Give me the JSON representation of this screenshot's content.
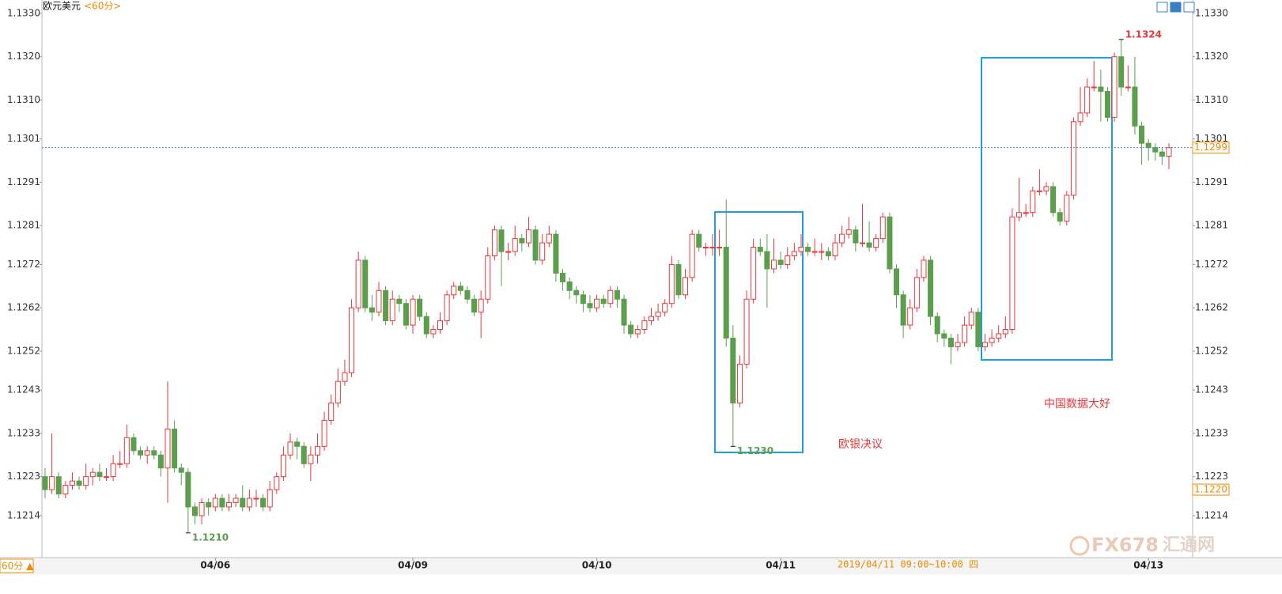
{
  "chart_data": {
    "type": "candlestick",
    "title": "欧元美元",
    "period": "<60分>",
    "period_button": "60分 ▲",
    "time_readout": "2019/04/11 09:00~10:00 四",
    "watermark": [
      "FX678",
      "汇通网"
    ],
    "annotations": [
      "欧银决议",
      "中国数据大好"
    ],
    "up_color": "#e8373b",
    "down_color": "#5b9e4d",
    "ylim": [
      1.12043,
      1.13331
    ],
    "yticks": [
      {
        "value": 1.133,
        "label": "1.1330"
      },
      {
        "value": 1.132,
        "label": "1.1320"
      },
      {
        "value": 1.131,
        "label": "1.1310"
      },
      {
        "value": 1.1301,
        "label": "1.1301"
      },
      {
        "value": 1.1291,
        "label": "1.1291"
      },
      {
        "value": 1.1281,
        "label": "1.1281"
      },
      {
        "value": 1.1272,
        "label": "1.1272"
      },
      {
        "value": 1.1262,
        "label": "1.1262"
      },
      {
        "value": 1.1252,
        "label": "1.1252"
      },
      {
        "value": 1.1243,
        "label": "1.1243"
      },
      {
        "value": 1.1233,
        "label": "1.1233"
      },
      {
        "value": 1.1223,
        "label": "1.1223"
      },
      {
        "value": 1.1214,
        "label": "1.1214"
      }
    ],
    "xticks": [
      {
        "value": 25,
        "label": "04/06"
      },
      {
        "value": 54,
        "label": "04/09"
      },
      {
        "value": 81,
        "label": "04/10"
      },
      {
        "value": 108,
        "label": "04/11"
      },
      {
        "value": 162,
        "label": "04/13"
      }
    ],
    "extremes": [
      {
        "kind": "low",
        "value": 1.121,
        "label": "1.1210"
      },
      {
        "kind": "low",
        "value": 1.123,
        "label": "1.1230"
      },
      {
        "kind": "high",
        "value": 1.1324,
        "label": "1.1324"
      }
    ],
    "last_price": {
      "value": 1.1299,
      "label": "1.1299"
    },
    "price_tag": {
      "value": 1.122,
      "label": "1.1220"
    },
    "ohlc": [
      [
        1.1223,
        1.1225,
        1.1218,
        1.122
      ],
      [
        1.122,
        1.1233,
        1.1219,
        1.1223
      ],
      [
        1.1223,
        1.1224,
        1.1218,
        1.1219
      ],
      [
        1.1219,
        1.1222,
        1.1218,
        1.1221
      ],
      [
        1.1221,
        1.1224,
        1.122,
        1.1222
      ],
      [
        1.1222,
        1.1223,
        1.122,
        1.1221
      ],
      [
        1.1221,
        1.1226,
        1.122,
        1.1223
      ],
      [
        1.1223,
        1.1225,
        1.1221,
        1.1224
      ],
      [
        1.1224,
        1.1226,
        1.1222,
        1.1223
      ],
      [
        1.1223,
        1.1225,
        1.1222,
        1.1223
      ],
      [
        1.1223,
        1.1228,
        1.1222,
        1.1226
      ],
      [
        1.1226,
        1.1229,
        1.1225,
        1.1226
      ],
      [
        1.1226,
        1.1235,
        1.1225,
        1.1232
      ],
      [
        1.1232,
        1.1233,
        1.1228,
        1.1229
      ],
      [
        1.1229,
        1.123,
        1.1227,
        1.1228
      ],
      [
        1.1228,
        1.123,
        1.1226,
        1.1229
      ],
      [
        1.1229,
        1.123,
        1.1227,
        1.1228
      ],
      [
        1.1228,
        1.1229,
        1.1223,
        1.1225
      ],
      [
        1.1225,
        1.1245,
        1.1217,
        1.1234
      ],
      [
        1.1234,
        1.1236,
        1.1224,
        1.1225
      ],
      [
        1.1225,
        1.1226,
        1.1221,
        1.1224
      ],
      [
        1.1224,
        1.1225,
        1.121,
        1.1216
      ],
      [
        1.1216,
        1.1217,
        1.1212,
        1.1214
      ],
      [
        1.1214,
        1.1218,
        1.1212,
        1.1217
      ],
      [
        1.1217,
        1.1218,
        1.1214,
        1.1216
      ],
      [
        1.1216,
        1.1219,
        1.1215,
        1.1218
      ],
      [
        1.1218,
        1.1219,
        1.1215,
        1.1216
      ],
      [
        1.1216,
        1.1219,
        1.1215,
        1.1217
      ],
      [
        1.1217,
        1.1219,
        1.1216,
        1.1218
      ],
      [
        1.1218,
        1.1221,
        1.1215,
        1.1216
      ],
      [
        1.1216,
        1.122,
        1.1215,
        1.1218
      ],
      [
        1.1218,
        1.122,
        1.1216,
        1.1218
      ],
      [
        1.1218,
        1.1219,
        1.1215,
        1.1216
      ],
      [
        1.1216,
        1.1222,
        1.1215,
        1.122
      ],
      [
        1.122,
        1.1224,
        1.1219,
        1.1223
      ],
      [
        1.1223,
        1.123,
        1.1222,
        1.1228
      ],
      [
        1.1228,
        1.1233,
        1.1227,
        1.1231
      ],
      [
        1.1231,
        1.1232,
        1.1227,
        1.123
      ],
      [
        1.123,
        1.1231,
        1.1225,
        1.1226
      ],
      [
        1.1226,
        1.123,
        1.1222,
        1.1228
      ],
      [
        1.1228,
        1.1233,
        1.1226,
        1.123
      ],
      [
        1.123,
        1.1238,
        1.1229,
        1.1236
      ],
      [
        1.1236,
        1.1242,
        1.1235,
        1.124
      ],
      [
        1.124,
        1.1248,
        1.1239,
        1.1245
      ],
      [
        1.1245,
        1.125,
        1.1244,
        1.1247
      ],
      [
        1.1247,
        1.1264,
        1.1246,
        1.1262
      ],
      [
        1.1262,
        1.1275,
        1.1261,
        1.1273
      ],
      [
        1.1273,
        1.1274,
        1.1261,
        1.1262
      ],
      [
        1.1262,
        1.1265,
        1.1259,
        1.1261
      ],
      [
        1.1261,
        1.1268,
        1.126,
        1.1266
      ],
      [
        1.1266,
        1.1267,
        1.1258,
        1.1259
      ],
      [
        1.1259,
        1.1266,
        1.1258,
        1.1264
      ],
      [
        1.1264,
        1.1265,
        1.1261,
        1.1263
      ],
      [
        1.1263,
        1.1264,
        1.1257,
        1.1258
      ],
      [
        1.1258,
        1.1265,
        1.1256,
        1.1264
      ],
      [
        1.1264,
        1.1265,
        1.1259,
        1.126
      ],
      [
        1.126,
        1.1261,
        1.1255,
        1.1256
      ],
      [
        1.1256,
        1.1258,
        1.1255,
        1.1257
      ],
      [
        1.1257,
        1.1261,
        1.1256,
        1.1259
      ],
      [
        1.1259,
        1.1266,
        1.1258,
        1.1265
      ],
      [
        1.1265,
        1.1268,
        1.1264,
        1.1267
      ],
      [
        1.1267,
        1.1268,
        1.1265,
        1.1266
      ],
      [
        1.1266,
        1.1267,
        1.1263,
        1.1264
      ],
      [
        1.1264,
        1.1265,
        1.126,
        1.1261
      ],
      [
        1.1261,
        1.1266,
        1.1255,
        1.1264
      ],
      [
        1.1264,
        1.1276,
        1.1263,
        1.1274
      ],
      [
        1.1274,
        1.1281,
        1.1273,
        1.128
      ],
      [
        1.128,
        1.1281,
        1.1267,
        1.1275
      ],
      [
        1.1275,
        1.1277,
        1.1273,
        1.1275
      ],
      [
        1.1275,
        1.1281,
        1.1274,
        1.1278
      ],
      [
        1.1278,
        1.1279,
        1.1275,
        1.1277
      ],
      [
        1.1277,
        1.1283,
        1.1276,
        1.128
      ],
      [
        1.128,
        1.1281,
        1.1272,
        1.1273
      ],
      [
        1.1273,
        1.1279,
        1.1272,
        1.1277
      ],
      [
        1.1277,
        1.1281,
        1.1276,
        1.1279
      ],
      [
        1.1279,
        1.128,
        1.1268,
        1.127
      ],
      [
        1.127,
        1.1271,
        1.1266,
        1.1268
      ],
      [
        1.1268,
        1.1269,
        1.1264,
        1.1266
      ],
      [
        1.1266,
        1.1267,
        1.1263,
        1.1265
      ],
      [
        1.1265,
        1.1266,
        1.1261,
        1.1263
      ],
      [
        1.1263,
        1.1265,
        1.1261,
        1.1262
      ],
      [
        1.1262,
        1.1265,
        1.1261,
        1.1264
      ],
      [
        1.1264,
        1.1265,
        1.1262,
        1.1263
      ],
      [
        1.1263,
        1.1267,
        1.1262,
        1.1266
      ],
      [
        1.1266,
        1.1267,
        1.1262,
        1.1264
      ],
      [
        1.1264,
        1.1265,
        1.1256,
        1.1258
      ],
      [
        1.1258,
        1.1259,
        1.1255,
        1.1256
      ],
      [
        1.1256,
        1.1258,
        1.1255,
        1.1257
      ],
      [
        1.1257,
        1.126,
        1.1256,
        1.1259
      ],
      [
        1.1259,
        1.1262,
        1.1258,
        1.126
      ],
      [
        1.126,
        1.1263,
        1.1259,
        1.1261
      ],
      [
        1.1261,
        1.1264,
        1.126,
        1.1263
      ],
      [
        1.1263,
        1.1274,
        1.1262,
        1.1272
      ],
      [
        1.1272,
        1.1273,
        1.1264,
        1.1265
      ],
      [
        1.1265,
        1.1271,
        1.1264,
        1.1269
      ],
      [
        1.1269,
        1.128,
        1.1268,
        1.1279
      ],
      [
        1.1279,
        1.128,
        1.1275,
        1.1276
      ],
      [
        1.1276,
        1.1277,
        1.1274,
        1.1276
      ],
      [
        1.1276,
        1.1279,
        1.1274,
        1.1276
      ],
      [
        1.1276,
        1.128,
        1.1274,
        1.1276
      ],
      [
        1.1276,
        1.1287,
        1.1253,
        1.1255
      ],
      [
        1.1255,
        1.1258,
        1.123,
        1.124
      ],
      [
        1.124,
        1.1251,
        1.1239,
        1.1249
      ],
      [
        1.1249,
        1.1266,
        1.1248,
        1.1264
      ],
      [
        1.1264,
        1.1278,
        1.1263,
        1.1276
      ],
      [
        1.1276,
        1.1278,
        1.1274,
        1.1275
      ],
      [
        1.1275,
        1.1279,
        1.1262,
        1.1271
      ],
      [
        1.1271,
        1.1278,
        1.127,
        1.1273
      ],
      [
        1.1273,
        1.1275,
        1.1271,
        1.1272
      ],
      [
        1.1272,
        1.1276,
        1.1271,
        1.1274
      ],
      [
        1.1274,
        1.1277,
        1.1273,
        1.1275
      ],
      [
        1.1275,
        1.1279,
        1.1274,
        1.1276
      ],
      [
        1.1276,
        1.1277,
        1.1274,
        1.1275
      ],
      [
        1.1275,
        1.1278,
        1.1274,
        1.1275
      ],
      [
        1.1275,
        1.1277,
        1.1273,
        1.1275
      ],
      [
        1.1275,
        1.1276,
        1.1273,
        1.1274
      ],
      [
        1.1274,
        1.1279,
        1.1273,
        1.1277
      ],
      [
        1.1277,
        1.1281,
        1.1276,
        1.1279
      ],
      [
        1.1279,
        1.1283,
        1.1278,
        1.128
      ],
      [
        1.128,
        1.1281,
        1.1275,
        1.1277
      ],
      [
        1.1277,
        1.1286,
        1.1276,
        1.1277
      ],
      [
        1.1277,
        1.1282,
        1.1275,
        1.1276
      ],
      [
        1.1276,
        1.1279,
        1.1275,
        1.1278
      ],
      [
        1.1278,
        1.1284,
        1.1277,
        1.1283
      ],
      [
        1.1283,
        1.1284,
        1.127,
        1.1271
      ],
      [
        1.1271,
        1.1272,
        1.1262,
        1.1265
      ],
      [
        1.1265,
        1.1266,
        1.1255,
        1.1258
      ],
      [
        1.1258,
        1.1264,
        1.1257,
        1.1262
      ],
      [
        1.1262,
        1.1271,
        1.1261,
        1.1269
      ],
      [
        1.1269,
        1.1274,
        1.1268,
        1.1273
      ],
      [
        1.1273,
        1.1274,
        1.1258,
        1.126
      ],
      [
        1.126,
        1.1261,
        1.1254,
        1.1256
      ],
      [
        1.1256,
        1.1257,
        1.1253,
        1.1255
      ],
      [
        1.1255,
        1.1256,
        1.1249,
        1.1253
      ],
      [
        1.1253,
        1.1256,
        1.1252,
        1.1254
      ],
      [
        1.1254,
        1.126,
        1.1253,
        1.1258
      ],
      [
        1.1258,
        1.1262,
        1.1257,
        1.1261
      ],
      [
        1.1261,
        1.1262,
        1.1252,
        1.1253
      ],
      [
        1.1253,
        1.1256,
        1.1252,
        1.1254
      ],
      [
        1.1254,
        1.1257,
        1.1253,
        1.1255
      ],
      [
        1.1255,
        1.1258,
        1.1254,
        1.1256
      ],
      [
        1.1256,
        1.126,
        1.1255,
        1.1257
      ],
      [
        1.1257,
        1.1285,
        1.1256,
        1.1283
      ],
      [
        1.1283,
        1.1292,
        1.1282,
        1.1284
      ],
      [
        1.1284,
        1.1286,
        1.1283,
        1.1284
      ],
      [
        1.1284,
        1.129,
        1.1283,
        1.1289
      ],
      [
        1.1289,
        1.1294,
        1.1288,
        1.1289
      ],
      [
        1.1289,
        1.1291,
        1.1288,
        1.129
      ],
      [
        1.129,
        1.1291,
        1.1283,
        1.1284
      ],
      [
        1.1284,
        1.1285,
        1.1281,
        1.1282
      ],
      [
        1.1282,
        1.1289,
        1.1281,
        1.1288
      ],
      [
        1.1288,
        1.1306,
        1.1287,
        1.1305
      ],
      [
        1.1305,
        1.1313,
        1.1304,
        1.1307
      ],
      [
        1.1307,
        1.1315,
        1.1306,
        1.1313
      ],
      [
        1.1313,
        1.1319,
        1.1312,
        1.1313
      ],
      [
        1.1313,
        1.1317,
        1.1305,
        1.1312
      ],
      [
        1.1312,
        1.1313,
        1.1305,
        1.1306
      ],
      [
        1.1306,
        1.1321,
        1.1305,
        1.132
      ],
      [
        1.132,
        1.1324,
        1.1311,
        1.1313
      ],
      [
        1.1313,
        1.1318,
        1.1312,
        1.1313
      ],
      [
        1.1313,
        1.132,
        1.1302,
        1.1304
      ],
      [
        1.1304,
        1.1305,
        1.1295,
        1.13
      ],
      [
        1.13,
        1.1301,
        1.1296,
        1.1299
      ],
      [
        1.1299,
        1.13,
        1.1296,
        1.1298
      ],
      [
        1.1298,
        1.1299,
        1.1295,
        1.1297
      ],
      [
        1.1297,
        1.13,
        1.1294,
        1.1299
      ]
    ]
  }
}
